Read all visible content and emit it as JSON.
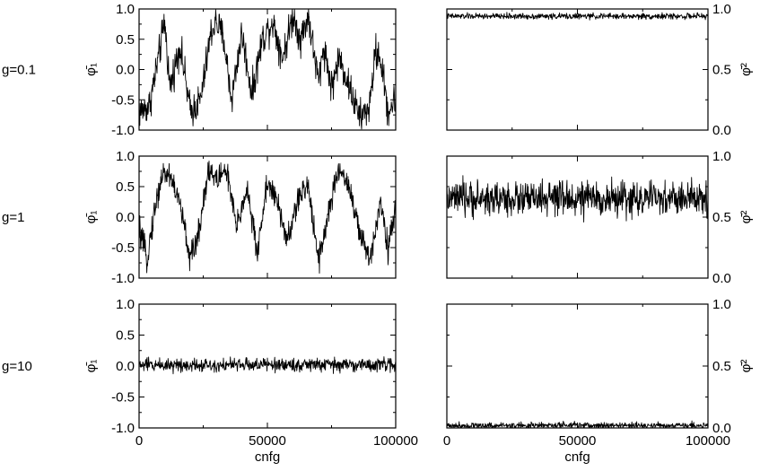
{
  "chart_data": [
    {
      "type": "line",
      "row_label": "g=0.1",
      "ylabel": "φ̄₁",
      "xlabel": "",
      "xlim": [
        0,
        100000
      ],
      "ylim": [
        -1.0,
        1.0
      ],
      "y_ticks": [
        "1.0",
        "0.5",
        "0.0",
        "-0.5",
        "-1.0"
      ],
      "x_ticks": [],
      "y_axis_side": "left",
      "series": [
        {
          "x": [
            0,
            4000,
            8000,
            10000,
            12000,
            16000,
            20000,
            24000,
            28000,
            30000,
            33000,
            36000,
            40000,
            44000,
            48000,
            52000,
            56000,
            60000,
            63000,
            66000,
            68000,
            70000,
            72000,
            75000,
            78000,
            82000,
            86000,
            90000,
            92000,
            94000,
            97000,
            100000
          ],
          "values": [
            -0.7,
            -0.6,
            0.3,
            0.8,
            -0.3,
            0.4,
            -0.7,
            -0.5,
            0.6,
            0.8,
            0.5,
            -0.5,
            0.6,
            -0.4,
            0.5,
            0.8,
            0.2,
            0.9,
            0.5,
            0.9,
            0.3,
            -0.2,
            0.4,
            -0.3,
            0.2,
            -0.3,
            -0.8,
            -0.6,
            0.3,
            0.2,
            -0.7,
            -0.5
          ]
        }
      ]
    },
    {
      "type": "line",
      "ylabel": "φ̄²",
      "xlabel": "",
      "xlim": [
        0,
        100000
      ],
      "ylim": [
        0.0,
        1.0
      ],
      "y_ticks": [
        "1.0",
        "0.5",
        "0.0"
      ],
      "x_ticks": [],
      "y_axis_side": "right",
      "series": [
        {
          "x": [
            0,
            50000,
            100000
          ],
          "values": [
            0.94,
            0.94,
            0.94
          ]
        }
      ]
    },
    {
      "type": "line",
      "row_label": "g=1",
      "ylabel": "φ̄₁",
      "xlabel": "",
      "xlim": [
        0,
        100000
      ],
      "ylim": [
        -1.0,
        1.0
      ],
      "y_ticks": [
        "1.0",
        "0.5",
        "0.0",
        "-0.5",
        "-1.0"
      ],
      "x_ticks": [],
      "y_axis_side": "left",
      "series": [
        {
          "x": [
            0,
            3000,
            6000,
            9000,
            12000,
            16000,
            20000,
            23000,
            27000,
            30000,
            34000,
            38000,
            42000,
            46000,
            50000,
            54000,
            58000,
            62000,
            66000,
            70000,
            74000,
            78000,
            82000,
            86000,
            90000,
            94000,
            97000,
            100000
          ],
          "values": [
            -0.2,
            -0.7,
            0.1,
            0.7,
            0.7,
            0.2,
            -0.7,
            -0.3,
            0.8,
            0.6,
            0.8,
            -0.2,
            0.5,
            -0.6,
            0.6,
            0.2,
            -0.4,
            0.3,
            0.5,
            -0.7,
            0.1,
            0.8,
            0.5,
            -0.3,
            -0.7,
            0.3,
            -0.5,
            0.1
          ]
        }
      ]
    },
    {
      "type": "line",
      "ylabel": "φ̄²",
      "xlabel": "",
      "xlim": [
        0,
        100000
      ],
      "ylim": [
        0.0,
        1.0
      ],
      "y_ticks": [
        "1.0",
        "0.5",
        "0.0"
      ],
      "x_ticks": [],
      "y_axis_side": "right",
      "series": [
        {
          "x": [
            0,
            50000,
            100000
          ],
          "values": [
            0.65,
            0.65,
            0.65
          ]
        }
      ]
    },
    {
      "type": "line",
      "row_label": "g=10",
      "ylabel": "φ̄₁",
      "xlabel": "cnfg",
      "xlim": [
        0,
        100000
      ],
      "ylim": [
        -1.0,
        1.0
      ],
      "y_ticks": [
        "1.0",
        "0.5",
        "0.0",
        "-0.5",
        "-1.0"
      ],
      "x_ticks": [
        "0",
        "50000",
        "100000"
      ],
      "y_axis_side": "left",
      "series": [
        {
          "x": [
            0,
            50000,
            100000
          ],
          "values": [
            0.02,
            0.02,
            0.02
          ]
        }
      ]
    },
    {
      "type": "line",
      "ylabel": "φ̄²",
      "xlabel": "cnfg",
      "xlim": [
        0,
        100000
      ],
      "ylim": [
        0.0,
        1.0
      ],
      "y_ticks": [
        "1.0",
        "0.5",
        "0.0"
      ],
      "x_ticks": [
        "0",
        "50000",
        "100000"
      ],
      "y_axis_side": "right",
      "series": [
        {
          "x": [
            0,
            50000,
            100000
          ],
          "values": [
            0.02,
            0.02,
            0.02
          ]
        }
      ]
    }
  ]
}
